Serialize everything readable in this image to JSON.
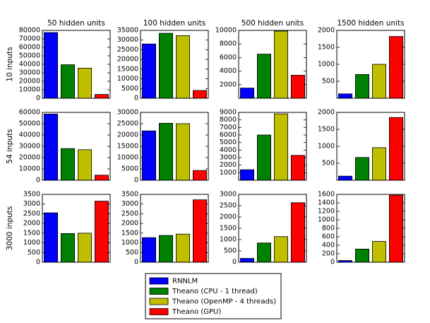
{
  "chart_data": {
    "type": "bar",
    "layout": "grid-3x4",
    "column_titles": [
      "50 hidden units",
      "100 hidden units",
      "500 hidden units",
      "1500 hidden units"
    ],
    "row_titles": [
      "10 inputs",
      "54 inputs",
      "3000 inputs"
    ],
    "series_names": [
      "RNNLM",
      "Theano (CPU - 1 thread)",
      "Theano (OpenMP - 4 threads)",
      "Theano (GPU)"
    ],
    "series_colors": [
      "#0000ff",
      "#008000",
      "#bfbf00",
      "#ff0000"
    ],
    "legend": {
      "placement": "bottom-center",
      "entries": [
        "RNNLM",
        "Theano (CPU - 1 thread)",
        "Theano (OpenMP - 4 threads)",
        "Theano (GPU)"
      ]
    },
    "grid": false,
    "panels": [
      [
        {
          "values": [
            77500,
            39500,
            35500,
            4500
          ],
          "ylim": [
            0,
            80000
          ],
          "yticks": [
            "0",
            "10000",
            "20000",
            "30000",
            "40000",
            "50000",
            "60000",
            "70000",
            "80000"
          ]
        },
        {
          "values": [
            28000,
            33500,
            32300,
            4000
          ],
          "ylim": [
            0,
            35000
          ],
          "yticks": [
            "0",
            "5000",
            "10000",
            "15000",
            "20000",
            "25000",
            "30000",
            "35000"
          ]
        },
        {
          "values": [
            1500,
            6500,
            9900,
            3400
          ],
          "ylim": [
            0,
            10000
          ],
          "yticks": [
            "2000",
            "4000",
            "6000",
            "8000",
            "10000"
          ]
        },
        {
          "values": [
            130,
            700,
            1000,
            1820
          ],
          "ylim": [
            0,
            2000
          ],
          "yticks": [
            "500",
            "1000",
            "1500",
            "2000"
          ]
        }
      ],
      [
        {
          "values": [
            58500,
            28000,
            27000,
            4500
          ],
          "ylim": [
            0,
            60000
          ],
          "yticks": [
            "0",
            "10000",
            "20000",
            "30000",
            "40000",
            "50000",
            "60000"
          ]
        },
        {
          "values": [
            21800,
            25200,
            25000,
            4300
          ],
          "ylim": [
            0,
            30000
          ],
          "yticks": [
            "0",
            "5000",
            "10000",
            "15000",
            "20000",
            "25000",
            "30000"
          ]
        },
        {
          "values": [
            1400,
            6000,
            8800,
            3300
          ],
          "ylim": [
            0,
            9000
          ],
          "yticks": [
            "1000",
            "2000",
            "3000",
            "4000",
            "5000",
            "6000",
            "7000",
            "8000",
            "9000"
          ]
        },
        {
          "values": [
            120,
            670,
            960,
            1850
          ],
          "ylim": [
            0,
            2000
          ],
          "yticks": [
            "500",
            "1000",
            "1500",
            "2000"
          ]
        }
      ],
      [
        {
          "values": [
            2550,
            1480,
            1500,
            3150
          ],
          "ylim": [
            0,
            3500
          ],
          "yticks": [
            "0",
            "500",
            "1000",
            "1500",
            "2000",
            "2500",
            "3000",
            "3500"
          ]
        },
        {
          "values": [
            1270,
            1380,
            1450,
            3220
          ],
          "ylim": [
            0,
            3500
          ],
          "yticks": [
            "0",
            "500",
            "1000",
            "1500",
            "2000",
            "2500",
            "3000",
            "3500"
          ]
        },
        {
          "values": [
            170,
            850,
            1130,
            2630
          ],
          "ylim": [
            0,
            3000
          ],
          "yticks": [
            "0",
            "500",
            "1000",
            "1500",
            "2000",
            "2500",
            "3000"
          ]
        },
        {
          "values": [
            40,
            310,
            490,
            1580
          ],
          "ylim": [
            0,
            1600
          ],
          "yticks": [
            "0",
            "200",
            "400",
            "600",
            "800",
            "1000",
            "1200",
            "1400",
            "1600"
          ]
        }
      ]
    ]
  }
}
